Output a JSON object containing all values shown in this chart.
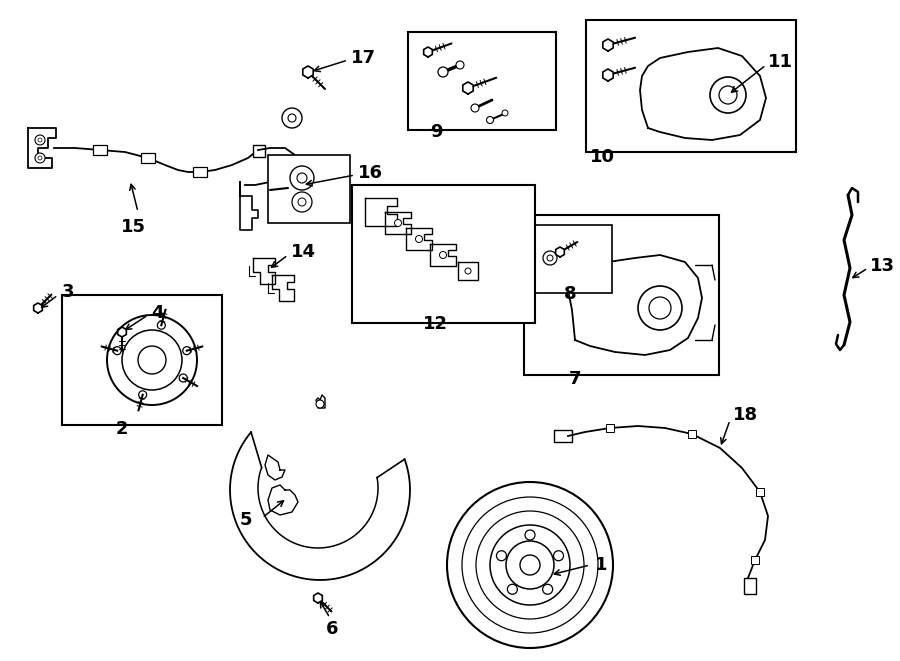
{
  "bg_color": "#ffffff",
  "lc": "#1a1a1a",
  "lw": 1.2,
  "fs": 13
}
